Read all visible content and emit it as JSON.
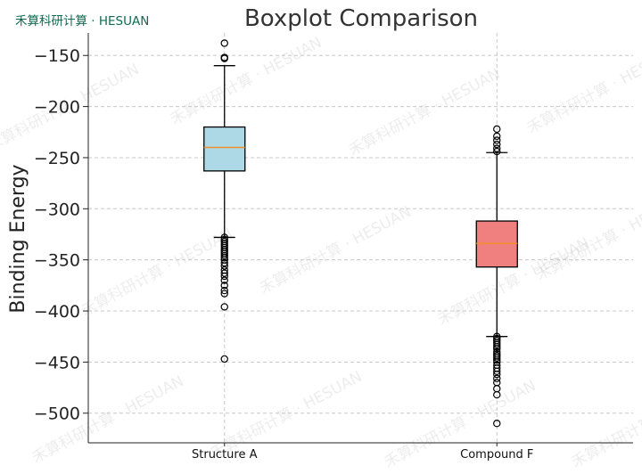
{
  "brand": "禾算科研计算 · HESUAN",
  "watermark": "禾算科研计算 · HESUAN",
  "chart_data": {
    "type": "boxplot",
    "title": "Boxplot Comparison",
    "xlabel": "",
    "ylabel": "Binding Energy",
    "ylim": [
      -529,
      -128
    ],
    "yticks": [
      -150,
      -200,
      -250,
      -300,
      -350,
      -400,
      -450,
      -500
    ],
    "grid": true,
    "categories": [
      "Structure A",
      "Compound F"
    ],
    "series": [
      {
        "category": "Structure A",
        "color": "#add8e6",
        "whisker_low": -328,
        "q1": -263,
        "median": -240,
        "q3": -220,
        "whisker_high": -160,
        "outliers": [
          -138,
          -152,
          -153,
          -328,
          -330,
          -332,
          -334,
          -336,
          -338,
          -340,
          -342,
          -344,
          -346,
          -348,
          -350,
          -353,
          -356,
          -360,
          -363,
          -366,
          -370,
          -375,
          -380,
          -383,
          -396,
          -447
        ]
      },
      {
        "category": "Compound F",
        "color": "#f08080",
        "whisker_low": -425,
        "q1": -357,
        "median": -334,
        "q3": -312,
        "whisker_high": -245,
        "outliers": [
          -222,
          -229,
          -233,
          -237,
          -241,
          -244,
          -425,
          -427,
          -429,
          -431,
          -433,
          -435,
          -437,
          -440,
          -442,
          -444,
          -446,
          -448,
          -450,
          -453,
          -456,
          -459,
          -462,
          -466,
          -470,
          -476,
          -482,
          -510
        ]
      }
    ]
  }
}
